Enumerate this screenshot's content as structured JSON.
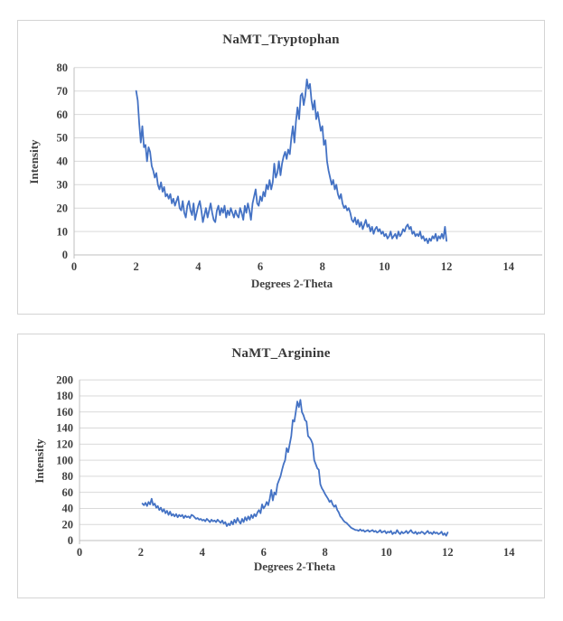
{
  "style": {
    "background": "#FFFFFF",
    "panel_border_color": "#D4D4D4",
    "line_color": "#4472C4",
    "gridline_color": "#D9D9D9",
    "axis_color": "#BFBFBF",
    "text_color": "#3F3F3F",
    "title_color": "#383838"
  },
  "chart_data": [
    {
      "type": "line",
      "title": "NaMT_Tryptophan",
      "xlabel": "Degrees 2-Theta",
      "ylabel": "Intensity",
      "xlim": [
        0,
        14
      ],
      "ylim": [
        0,
        80
      ],
      "x_ticks": [
        0,
        2,
        4,
        6,
        8,
        10,
        12,
        14
      ],
      "y_ticks": [
        0,
        10,
        20,
        30,
        40,
        50,
        60,
        70,
        80
      ],
      "grid": "horizontal",
      "legend": "none",
      "series": [
        {
          "x_start": 2.0,
          "x_step": 0.05,
          "values": [
            70,
            66,
            56,
            48,
            55,
            46,
            47,
            40,
            46,
            44,
            38,
            36,
            33,
            35,
            30,
            28,
            31,
            27,
            29,
            25,
            26,
            24,
            26,
            22,
            24,
            21,
            23,
            25,
            20,
            19,
            23,
            18,
            16,
            21,
            23,
            19,
            17,
            22,
            15,
            18,
            21,
            23,
            19,
            14,
            17,
            20,
            16,
            19,
            22,
            18,
            15,
            14,
            19,
            21,
            17,
            20,
            18,
            21,
            16,
            19,
            17,
            20,
            18,
            16,
            19,
            17,
            16,
            20,
            18,
            15,
            21,
            18,
            22,
            19,
            15,
            22,
            25,
            28,
            22,
            21,
            25,
            23,
            27,
            25,
            30,
            28,
            32,
            28,
            31,
            39,
            33,
            35,
            40,
            34,
            39,
            42,
            44,
            41,
            45,
            43,
            50,
            55,
            48,
            57,
            63,
            58,
            68,
            69,
            64,
            68,
            75,
            71,
            73,
            66,
            62,
            66,
            58,
            61,
            57,
            53,
            55,
            47,
            49,
            40,
            36,
            33,
            30,
            32,
            28,
            30,
            26,
            24,
            26,
            22,
            20,
            21,
            19,
            20,
            18,
            15,
            14,
            16,
            13,
            15,
            12,
            14,
            11,
            13,
            15,
            12,
            13,
            10,
            12,
            9,
            11,
            12,
            10,
            11,
            9,
            10,
            8,
            9,
            7,
            8,
            10,
            7,
            8,
            9,
            7,
            10,
            8,
            9,
            11,
            10,
            12,
            13,
            11,
            12,
            9,
            10,
            8,
            9,
            8,
            10,
            7,
            8,
            6,
            7,
            5,
            7,
            6,
            8,
            7,
            9,
            6,
            8,
            7,
            9,
            7,
            12,
            6
          ]
        }
      ]
    },
    {
      "type": "line",
      "title": "NaMT_Arginine",
      "xlabel": "Degrees 2-Theta",
      "ylabel": "Intensity",
      "xlim": [
        0,
        14
      ],
      "ylim": [
        0,
        200
      ],
      "x_ticks": [
        0,
        2,
        4,
        6,
        8,
        10,
        12,
        14
      ],
      "y_ticks": [
        0,
        20,
        40,
        60,
        80,
        100,
        120,
        140,
        160,
        180,
        200
      ],
      "grid": "horizontal",
      "legend": "none",
      "series": [
        {
          "x_start": 2.05,
          "x_step": 0.05,
          "values": [
            46,
            44,
            47,
            43,
            48,
            45,
            52,
            44,
            46,
            41,
            43,
            38,
            41,
            36,
            39,
            34,
            37,
            32,
            36,
            31,
            33,
            30,
            33,
            29,
            32,
            30,
            32,
            28,
            31,
            29,
            30,
            28,
            32,
            31,
            29,
            27,
            28,
            26,
            27,
            25,
            26,
            24,
            27,
            25,
            23,
            26,
            24,
            25,
            23,
            26,
            24,
            22,
            25,
            21,
            23,
            18,
            21,
            19,
            24,
            20,
            26,
            22,
            28,
            24,
            21,
            27,
            23,
            29,
            25,
            30,
            26,
            32,
            28,
            33,
            30,
            35,
            38,
            34,
            45,
            40,
            43,
            48,
            44,
            52,
            63,
            50,
            60,
            57,
            70,
            75,
            80,
            88,
            95,
            100,
            115,
            110,
            120,
            130,
            150,
            148,
            160,
            173,
            166,
            175,
            160,
            156,
            150,
            148,
            130,
            128,
            125,
            120,
            100,
            95,
            90,
            88,
            70,
            65,
            62,
            58,
            55,
            52,
            48,
            50,
            45,
            42,
            44,
            38,
            35,
            30,
            28,
            25,
            23,
            22,
            20,
            18,
            16,
            15,
            14,
            13,
            13,
            12,
            14,
            12,
            13,
            11,
            12,
            13,
            11,
            12,
            13,
            11,
            12,
            10,
            11,
            13,
            10,
            11,
            12,
            9,
            11,
            10,
            12,
            8,
            10,
            9,
            13,
            10,
            8,
            11,
            9,
            10,
            12,
            9,
            11,
            13,
            10,
            9,
            11,
            8,
            10,
            9,
            11,
            10,
            8,
            10,
            12,
            9,
            10,
            8,
            11,
            9,
            10,
            8,
            9,
            11,
            7,
            9,
            6,
            10
          ]
        }
      ]
    }
  ]
}
